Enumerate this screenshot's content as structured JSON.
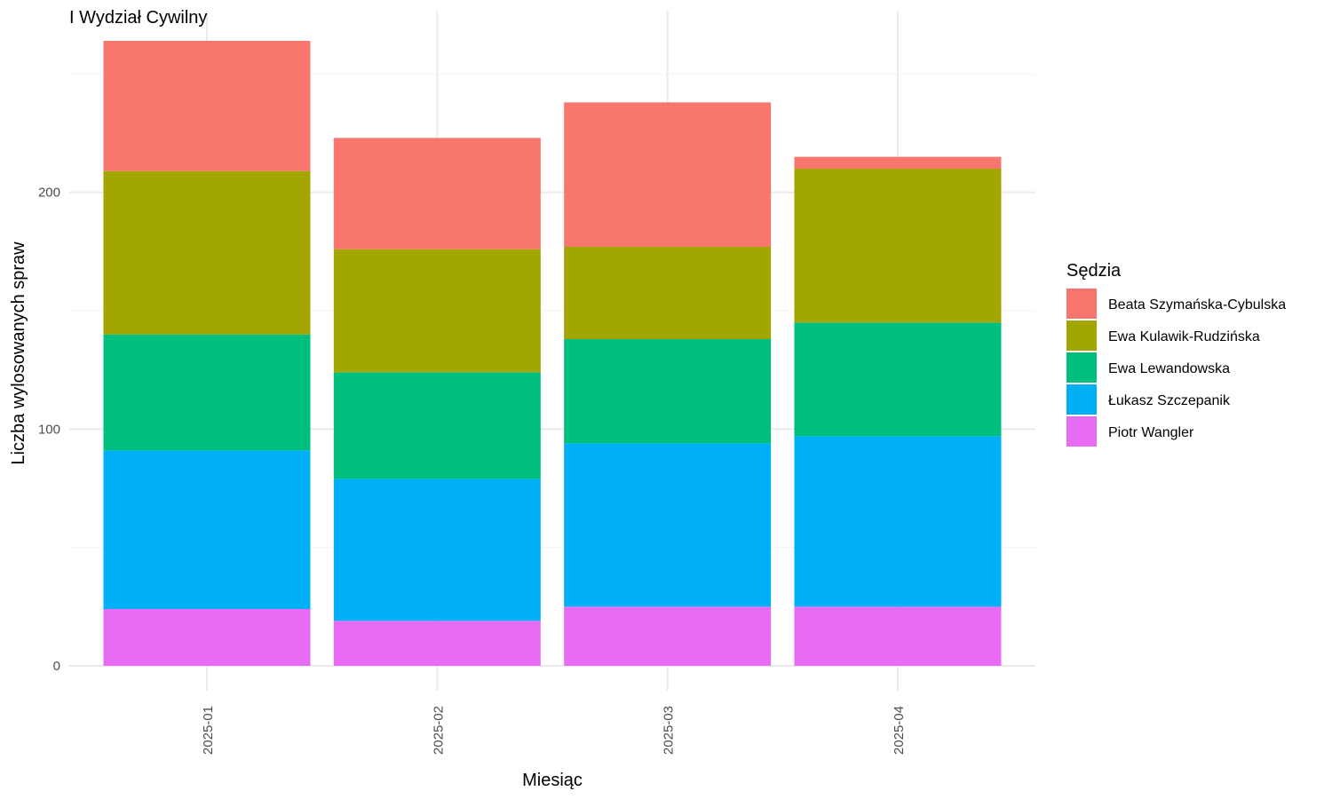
{
  "chart_data": {
    "type": "bar",
    "stacked": true,
    "title": "I Wydział Cywilny",
    "xlabel": "Miesiąc",
    "ylabel": "Liczba wylosowanych spraw",
    "ylim": [
      0,
      264
    ],
    "yticks": [
      0,
      100,
      200
    ],
    "grid": true,
    "legend": {
      "title": "Sędzia",
      "position": "right"
    },
    "categories": [
      "2025-01",
      "2025-02",
      "2025-03",
      "2025-04"
    ],
    "series": [
      {
        "name": "Piotr Wangler",
        "color": "#E76BF3",
        "values": [
          24,
          19,
          25,
          25
        ]
      },
      {
        "name": "Łukasz Szczepanik",
        "color": "#00B0F6",
        "values": [
          67,
          60,
          69,
          72
        ]
      },
      {
        "name": "Ewa Lewandowska",
        "color": "#00BF7D",
        "values": [
          49,
          45,
          44,
          48
        ]
      },
      {
        "name": "Ewa Kulawik-Rudzińska",
        "color": "#A3A500",
        "values": [
          69,
          52,
          39,
          65
        ]
      },
      {
        "name": "Beata Szymańska-Cybulska",
        "color": "#F8766D",
        "values": [
          55,
          47,
          61,
          5
        ]
      }
    ],
    "legend_order": [
      "Beata Szymańska-Cybulska",
      "Ewa Kulawik-Rudzińska",
      "Ewa Lewandowska",
      "Łukasz Szczepanik",
      "Piotr Wangler"
    ]
  }
}
